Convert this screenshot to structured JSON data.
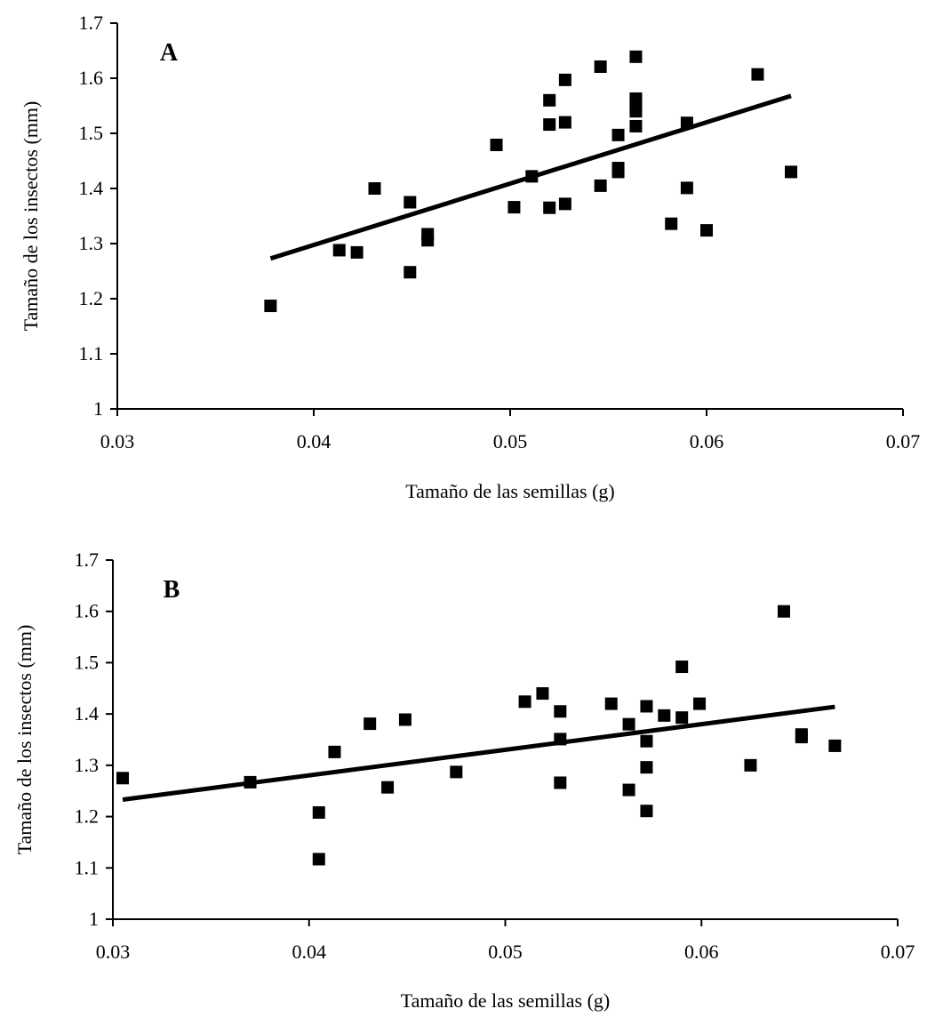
{
  "chart_data": [
    {
      "type": "scatter",
      "panel_label": "A",
      "xlabel": "Tamaño de las semillas (g)",
      "ylabel": "Tamaño de los insectos (mm)",
      "xlim": [
        0.03,
        0.07
      ],
      "ylim": [
        1,
        1.7
      ],
      "xticks": [
        "0.03",
        "0.04",
        "0.05",
        "0.06",
        "0.07"
      ],
      "yticks": [
        "1",
        "1.1",
        "1.2",
        "1.3",
        "1.4",
        "1.5",
        "1.6",
        "1.7"
      ],
      "grid": false,
      "marker": "square",
      "points": [
        {
          "x": 0.0378,
          "y": 1.187
        },
        {
          "x": 0.0413,
          "y": 1.288
        },
        {
          "x": 0.0422,
          "y": 1.284
        },
        {
          "x": 0.0431,
          "y": 1.4
        },
        {
          "x": 0.0449,
          "y": 1.375
        },
        {
          "x": 0.0449,
          "y": 1.248
        },
        {
          "x": 0.0458,
          "y": 1.317
        },
        {
          "x": 0.0458,
          "y": 1.306
        },
        {
          "x": 0.0493,
          "y": 1.479
        },
        {
          "x": 0.0502,
          "y": 1.366
        },
        {
          "x": 0.0511,
          "y": 1.422
        },
        {
          "x": 0.052,
          "y": 1.56
        },
        {
          "x": 0.052,
          "y": 1.516
        },
        {
          "x": 0.052,
          "y": 1.365
        },
        {
          "x": 0.0528,
          "y": 1.597
        },
        {
          "x": 0.0528,
          "y": 1.52
        },
        {
          "x": 0.0528,
          "y": 1.372
        },
        {
          "x": 0.0546,
          "y": 1.621
        },
        {
          "x": 0.0546,
          "y": 1.405
        },
        {
          "x": 0.0555,
          "y": 1.497
        },
        {
          "x": 0.0555,
          "y": 1.437
        },
        {
          "x": 0.0555,
          "y": 1.43
        },
        {
          "x": 0.0564,
          "y": 1.639
        },
        {
          "x": 0.0564,
          "y": 1.563
        },
        {
          "x": 0.0564,
          "y": 1.553
        },
        {
          "x": 0.0564,
          "y": 1.54
        },
        {
          "x": 0.0564,
          "y": 1.513
        },
        {
          "x": 0.0582,
          "y": 1.336
        },
        {
          "x": 0.059,
          "y": 1.519
        },
        {
          "x": 0.059,
          "y": 1.401
        },
        {
          "x": 0.06,
          "y": 1.324
        },
        {
          "x": 0.0626,
          "y": 1.607
        },
        {
          "x": 0.0643,
          "y": 1.43
        }
      ],
      "trendline": {
        "x": [
          0.0378,
          0.0643
        ],
        "y": [
          1.273,
          1.568
        ]
      }
    },
    {
      "type": "scatter",
      "panel_label": "B",
      "xlabel": "Tamaño de las semillas (g)",
      "ylabel": "Tamaño de los insectos (mm)",
      "xlim": [
        0.03,
        0.07
      ],
      "ylim": [
        1,
        1.7
      ],
      "xticks": [
        "0.03",
        "0.04",
        "0.05",
        "0.06",
        "0.07"
      ],
      "yticks": [
        "1",
        "1.1",
        "1.2",
        "1.3",
        "1.4",
        "1.5",
        "1.6",
        "1.7"
      ],
      "grid": false,
      "marker": "square",
      "points": [
        {
          "x": 0.0305,
          "y": 1.275
        },
        {
          "x": 0.037,
          "y": 1.267
        },
        {
          "x": 0.0405,
          "y": 1.208
        },
        {
          "x": 0.0405,
          "y": 1.117
        },
        {
          "x": 0.0413,
          "y": 1.326
        },
        {
          "x": 0.0431,
          "y": 1.381
        },
        {
          "x": 0.044,
          "y": 1.257
        },
        {
          "x": 0.0449,
          "y": 1.389
        },
        {
          "x": 0.0475,
          "y": 1.287
        },
        {
          "x": 0.051,
          "y": 1.424
        },
        {
          "x": 0.0519,
          "y": 1.44
        },
        {
          "x": 0.0528,
          "y": 1.405
        },
        {
          "x": 0.0528,
          "y": 1.351
        },
        {
          "x": 0.0528,
          "y": 1.266
        },
        {
          "x": 0.0554,
          "y": 1.42
        },
        {
          "x": 0.0563,
          "y": 1.38
        },
        {
          "x": 0.0563,
          "y": 1.252
        },
        {
          "x": 0.0572,
          "y": 1.415
        },
        {
          "x": 0.0572,
          "y": 1.347
        },
        {
          "x": 0.0572,
          "y": 1.296
        },
        {
          "x": 0.0572,
          "y": 1.211
        },
        {
          "x": 0.0581,
          "y": 1.397
        },
        {
          "x": 0.059,
          "y": 1.492
        },
        {
          "x": 0.059,
          "y": 1.393
        },
        {
          "x": 0.0599,
          "y": 1.42
        },
        {
          "x": 0.0625,
          "y": 1.3
        },
        {
          "x": 0.0642,
          "y": 1.6
        },
        {
          "x": 0.0651,
          "y": 1.36
        },
        {
          "x": 0.0651,
          "y": 1.355
        },
        {
          "x": 0.0668,
          "y": 1.338
        }
      ],
      "trendline": {
        "x": [
          0.0305,
          0.0668
        ],
        "y": [
          1.233,
          1.414
        ]
      }
    }
  ]
}
